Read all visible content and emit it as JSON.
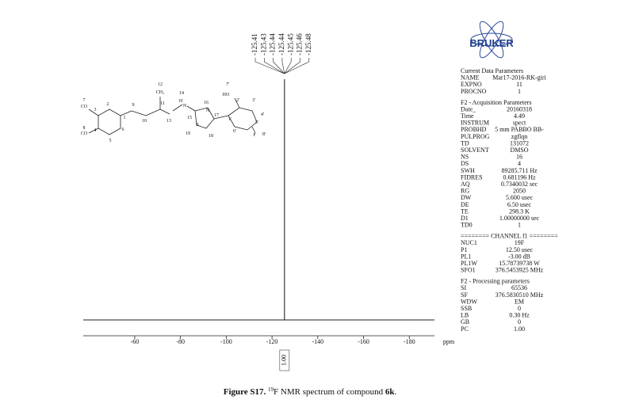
{
  "chart_data": {
    "type": "spectrum",
    "xlabel": "ppm",
    "xlim": [
      -37.5,
      -191
    ],
    "xticks": [
      -60,
      -80,
      -100,
      -120,
      -140,
      -160,
      -180
    ],
    "peaks": [
      {
        "x": -125.45
      }
    ],
    "peak_labels": [
      "-125.41",
      "-125.43",
      "-125.44",
      "-125.44",
      "-125.45",
      "-125.46",
      "-125.48"
    ],
    "integral": "1.00"
  },
  "structure_labels": [
    "12",
    "CH₃",
    "14",
    "7'",
    "HO",
    "2'",
    "3'",
    "16",
    "11",
    "9",
    "2",
    "7",
    "CO",
    "3",
    "H",
    "N",
    "N",
    "10",
    "13",
    "1",
    "15",
    "17",
    "1'",
    "4'",
    "S",
    "5'",
    "8",
    "CO",
    "4",
    "6",
    "19",
    "18",
    "6'",
    "5",
    "F",
    "8'"
  ],
  "logo": "BRUKER",
  "parameters": [
    {
      "title": "Current Data Parameters",
      "rows": [
        [
          "NAME",
          "Mar17-2016-RK-giri"
        ],
        [
          "EXPNO",
          "11"
        ],
        [
          "PROCNO",
          "1"
        ]
      ]
    },
    {
      "title": "F2 - Acquisition Parameters",
      "rows": [
        [
          "Date_",
          "20160318"
        ],
        [
          "Time",
          "4.49"
        ],
        [
          "INSTRUM",
          "spect"
        ],
        [
          "PROBHD",
          "5 mm PABBO BB-"
        ],
        [
          "PULPROG",
          "zgflqn"
        ],
        [
          "TD",
          "131072"
        ],
        [
          "SOLVENT",
          "DMSO"
        ],
        [
          "NS",
          "16"
        ],
        [
          "DS",
          "4"
        ],
        [
          "SWH",
          "89285.711 Hz"
        ],
        [
          "FIDRES",
          "0.681196 Hz"
        ],
        [
          "AQ",
          "0.7340032 sec"
        ],
        [
          "RG",
          "2050"
        ],
        [
          "DW",
          "5.600 usec"
        ],
        [
          "DE",
          "6.50 usec"
        ],
        [
          "TE",
          "298.3 K"
        ],
        [
          "D1",
          "1.00000000 sec"
        ],
        [
          "TD0",
          "1"
        ]
      ]
    },
    {
      "title": "======== CHANNEL f1 ========",
      "rows": [
        [
          "NUC1",
          "19F"
        ],
        [
          "P1",
          "12.50 usec"
        ],
        [
          "PL1",
          "-3.00 dB"
        ],
        [
          "PL1W",
          "15.78739738 W"
        ],
        [
          "SFO1",
          "376.5453925 MHz"
        ]
      ]
    },
    {
      "title": "F2 - Processing parameters",
      "rows": [
        [
          "SI",
          "65536"
        ],
        [
          "SF",
          "376.5830510 MHz"
        ],
        [
          "WDW",
          "EM"
        ],
        [
          "SSB",
          "0"
        ],
        [
          "LB",
          "0.30 Hz"
        ],
        [
          "GB",
          "0"
        ],
        [
          "PC",
          "1.00"
        ]
      ]
    }
  ],
  "caption": {
    "label": "Figure S17.",
    "superscript": "19",
    "text": "F NMR spectrum of compound ",
    "compound": "6k",
    "end": "."
  }
}
